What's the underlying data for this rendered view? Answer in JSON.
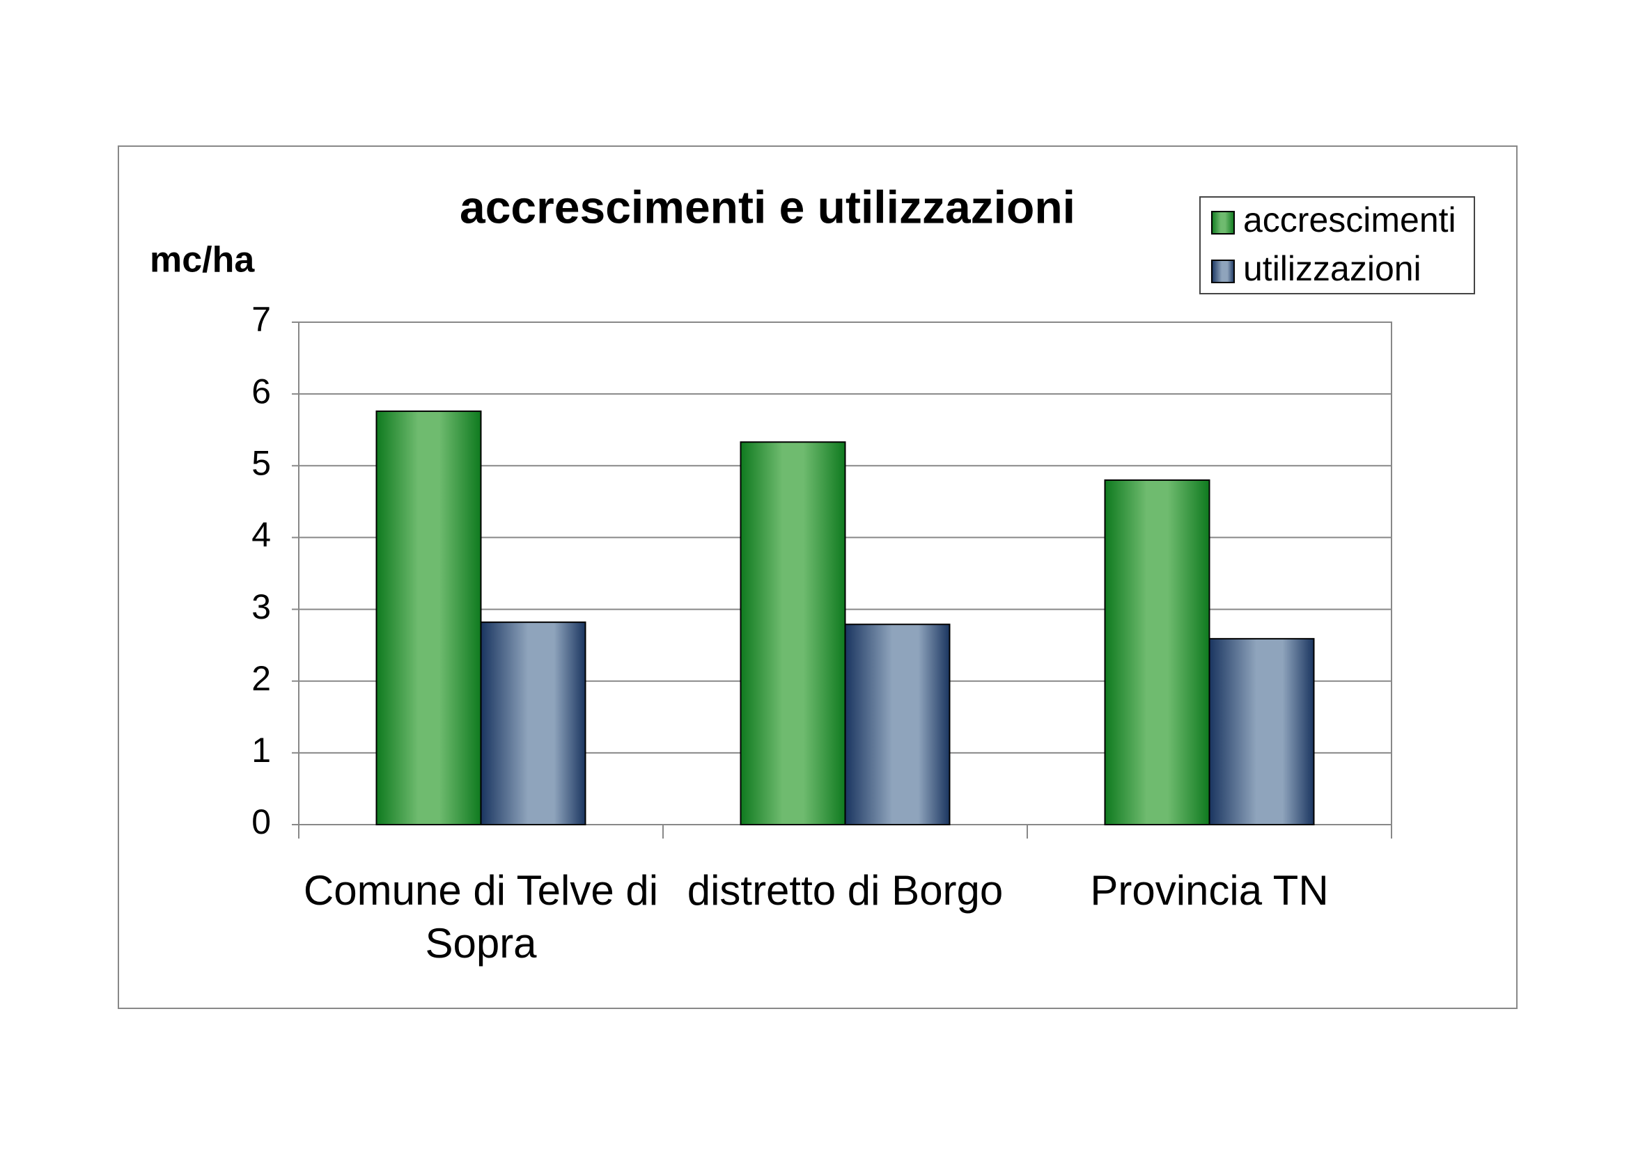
{
  "chart_data": {
    "type": "bar",
    "title": "accrescimenti e utilizzazioni",
    "y_label": "mc/ha",
    "categories": [
      "Comune di Telve di Sopra",
      "distretto di Borgo",
      "Provincia TN"
    ],
    "series": [
      {
        "name": "accrescimenti",
        "color": "#6fbb6f",
        "values": [
          5.76,
          5.33,
          4.8
        ]
      },
      {
        "name": "utilizzazioni",
        "color": "#8fa4bc",
        "values": [
          2.82,
          2.79,
          2.59
        ]
      }
    ],
    "ylim": [
      0,
      7
    ],
    "yticks": [
      0,
      1,
      2,
      3,
      4,
      5,
      6,
      7
    ],
    "grid": true,
    "legend": "top-right"
  }
}
